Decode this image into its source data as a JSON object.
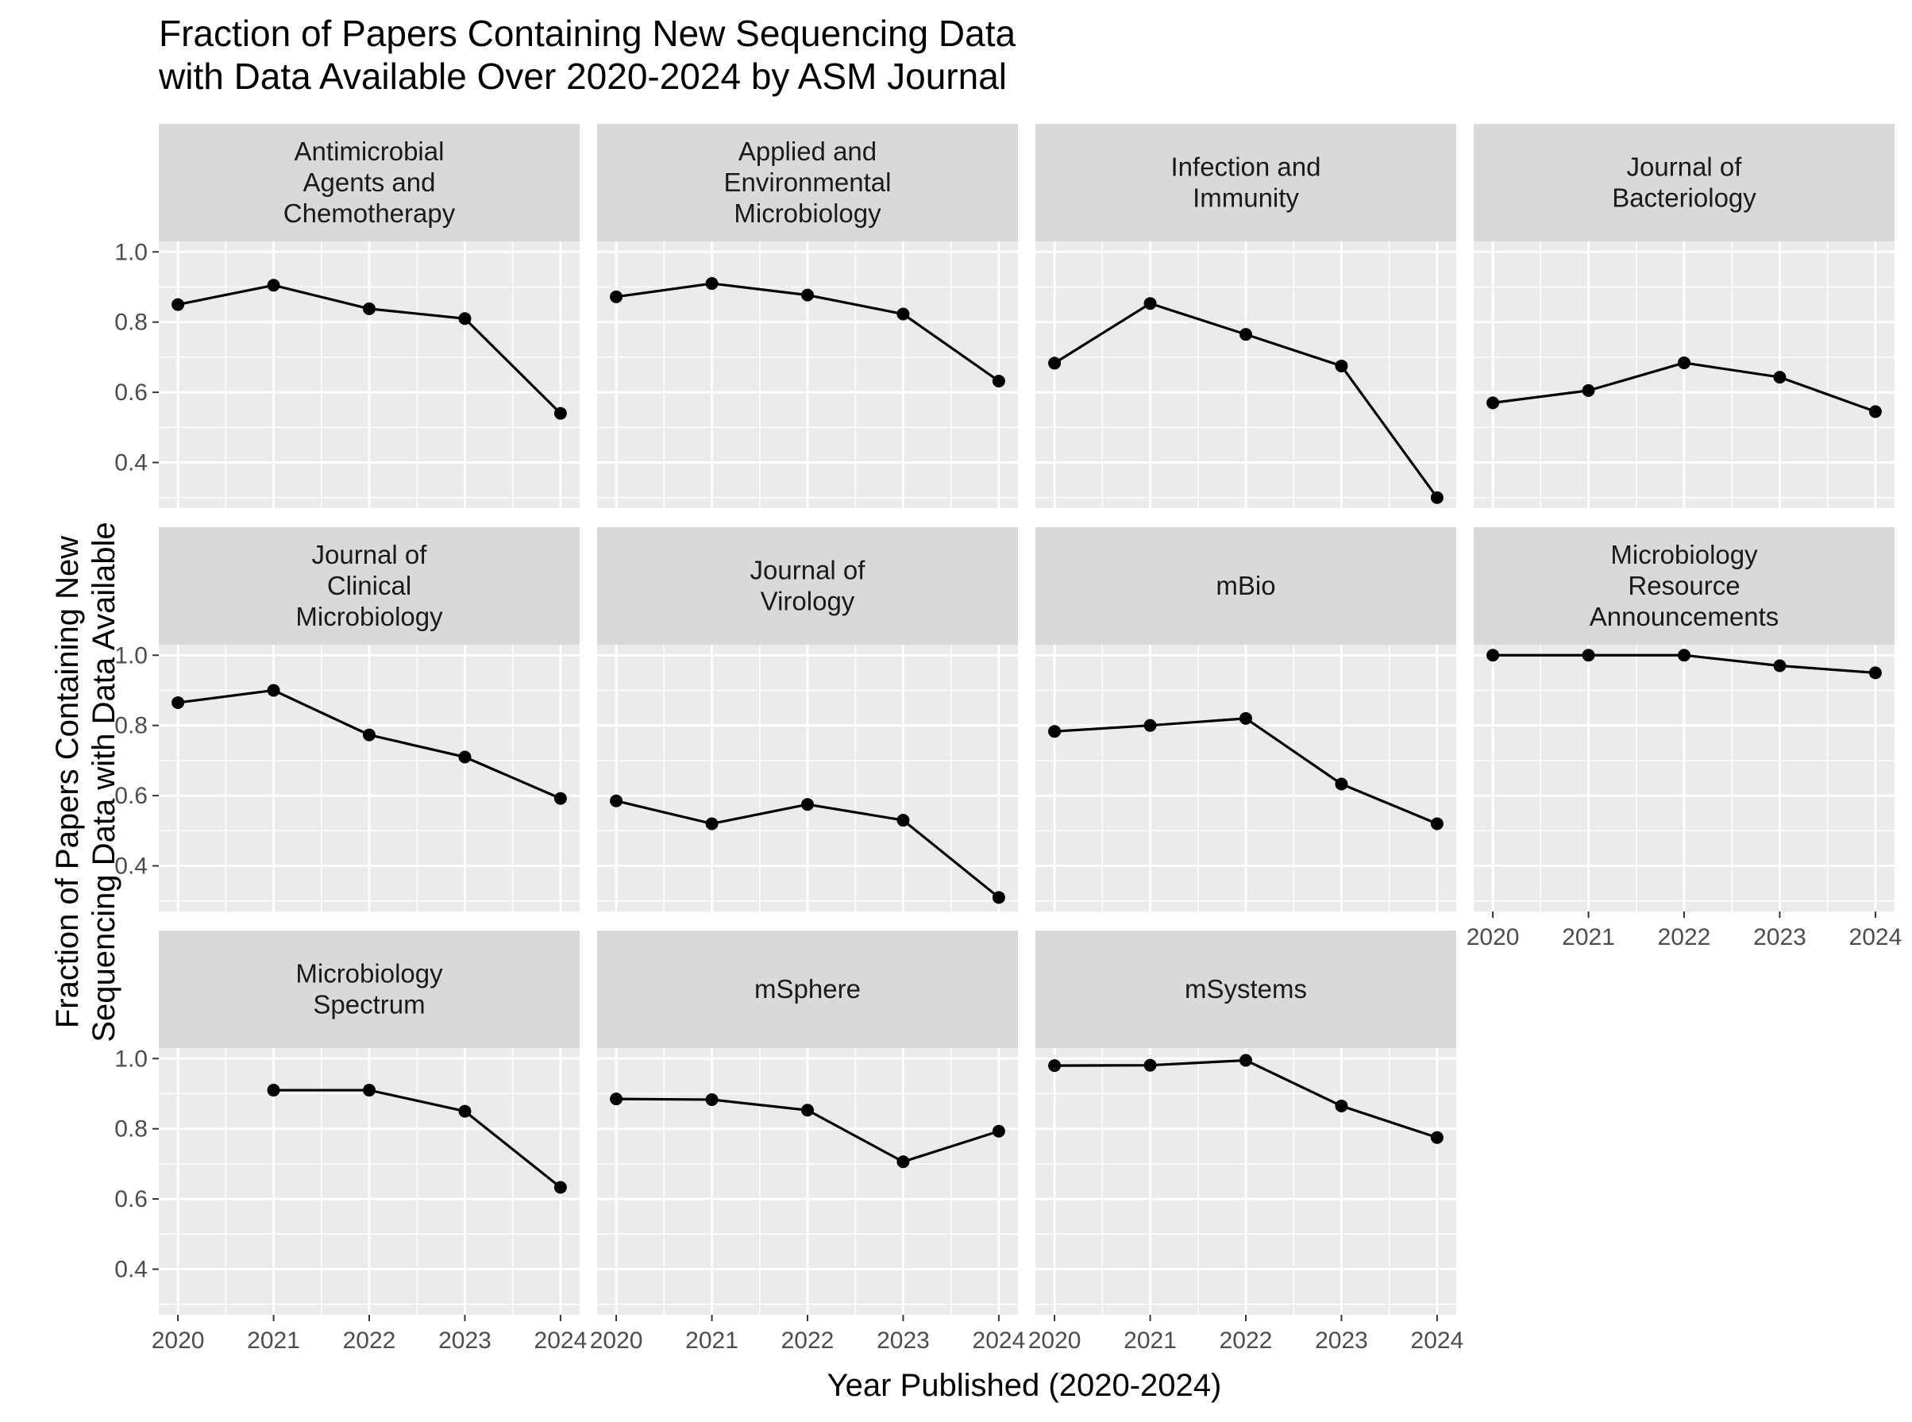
{
  "chart_data": {
    "type": "line",
    "title": "Fraction of Papers Containing New Sequencing Data\nwith Data Available Over 2020-2024 by ASM Journal",
    "xlabel": "Year Published (2020-2024)",
    "ylabel": "Fraction of Papers Containing New\nSequencing Data with Data Available",
    "x": [
      2020,
      2021,
      2022,
      2023,
      2024
    ],
    "x_tick_labels": [
      "2020",
      "2021",
      "2022",
      "2023",
      "2024"
    ],
    "y_ticks": [
      0.4,
      0.6,
      0.8,
      1.0
    ],
    "y_tick_labels": [
      "0.4",
      "0.6",
      "0.8",
      "1.0"
    ],
    "ylim": [
      0.27,
      1.03
    ],
    "xlim": [
      2019.8,
      2024.2
    ],
    "grid": true,
    "facets": [
      {
        "strip": "Antimicrobial\nAgents and\nChemotherapy",
        "values": [
          0.85,
          0.905,
          0.838,
          0.81,
          0.54
        ]
      },
      {
        "strip": "Applied and\nEnvironmental\nMicrobiology",
        "values": [
          0.872,
          0.91,
          0.877,
          0.823,
          0.632
        ]
      },
      {
        "strip": "Infection and\nImmunity",
        "values": [
          0.683,
          0.853,
          0.765,
          0.675,
          0.3
        ]
      },
      {
        "strip": "Journal of\nBacteriology",
        "values": [
          0.57,
          0.605,
          0.684,
          0.643,
          0.545
        ]
      },
      {
        "strip": "Journal of\nClinical\nMicrobiology",
        "values": [
          0.865,
          0.9,
          0.773,
          0.71,
          0.592
        ]
      },
      {
        "strip": "Journal of\nVirology",
        "values": [
          0.585,
          0.52,
          0.575,
          0.53,
          0.31
        ]
      },
      {
        "strip": "mBio",
        "values": [
          0.783,
          0.8,
          0.82,
          0.633,
          0.52
        ]
      },
      {
        "strip": "Microbiology\nResource\nAnnouncements",
        "values": [
          1.0,
          1.0,
          1.0,
          0.97,
          0.95
        ]
      },
      {
        "strip": "Microbiology\nSpectrum",
        "values": [
          null,
          0.91,
          0.91,
          0.85,
          0.633
        ]
      },
      {
        "strip": "mSphere",
        "values": [
          0.885,
          0.883,
          0.853,
          0.706,
          0.793
        ]
      },
      {
        "strip": "mSystems",
        "values": [
          0.98,
          0.981,
          0.995,
          0.865,
          0.775
        ]
      }
    ],
    "colors": {
      "panel": "#ebebeb",
      "strip": "#d9d9d9",
      "grid": "#ffffff",
      "line": "#000000",
      "point": "#000000",
      "strip_text": "#1a1a1a",
      "tick_text": "#4d4d4d"
    }
  }
}
